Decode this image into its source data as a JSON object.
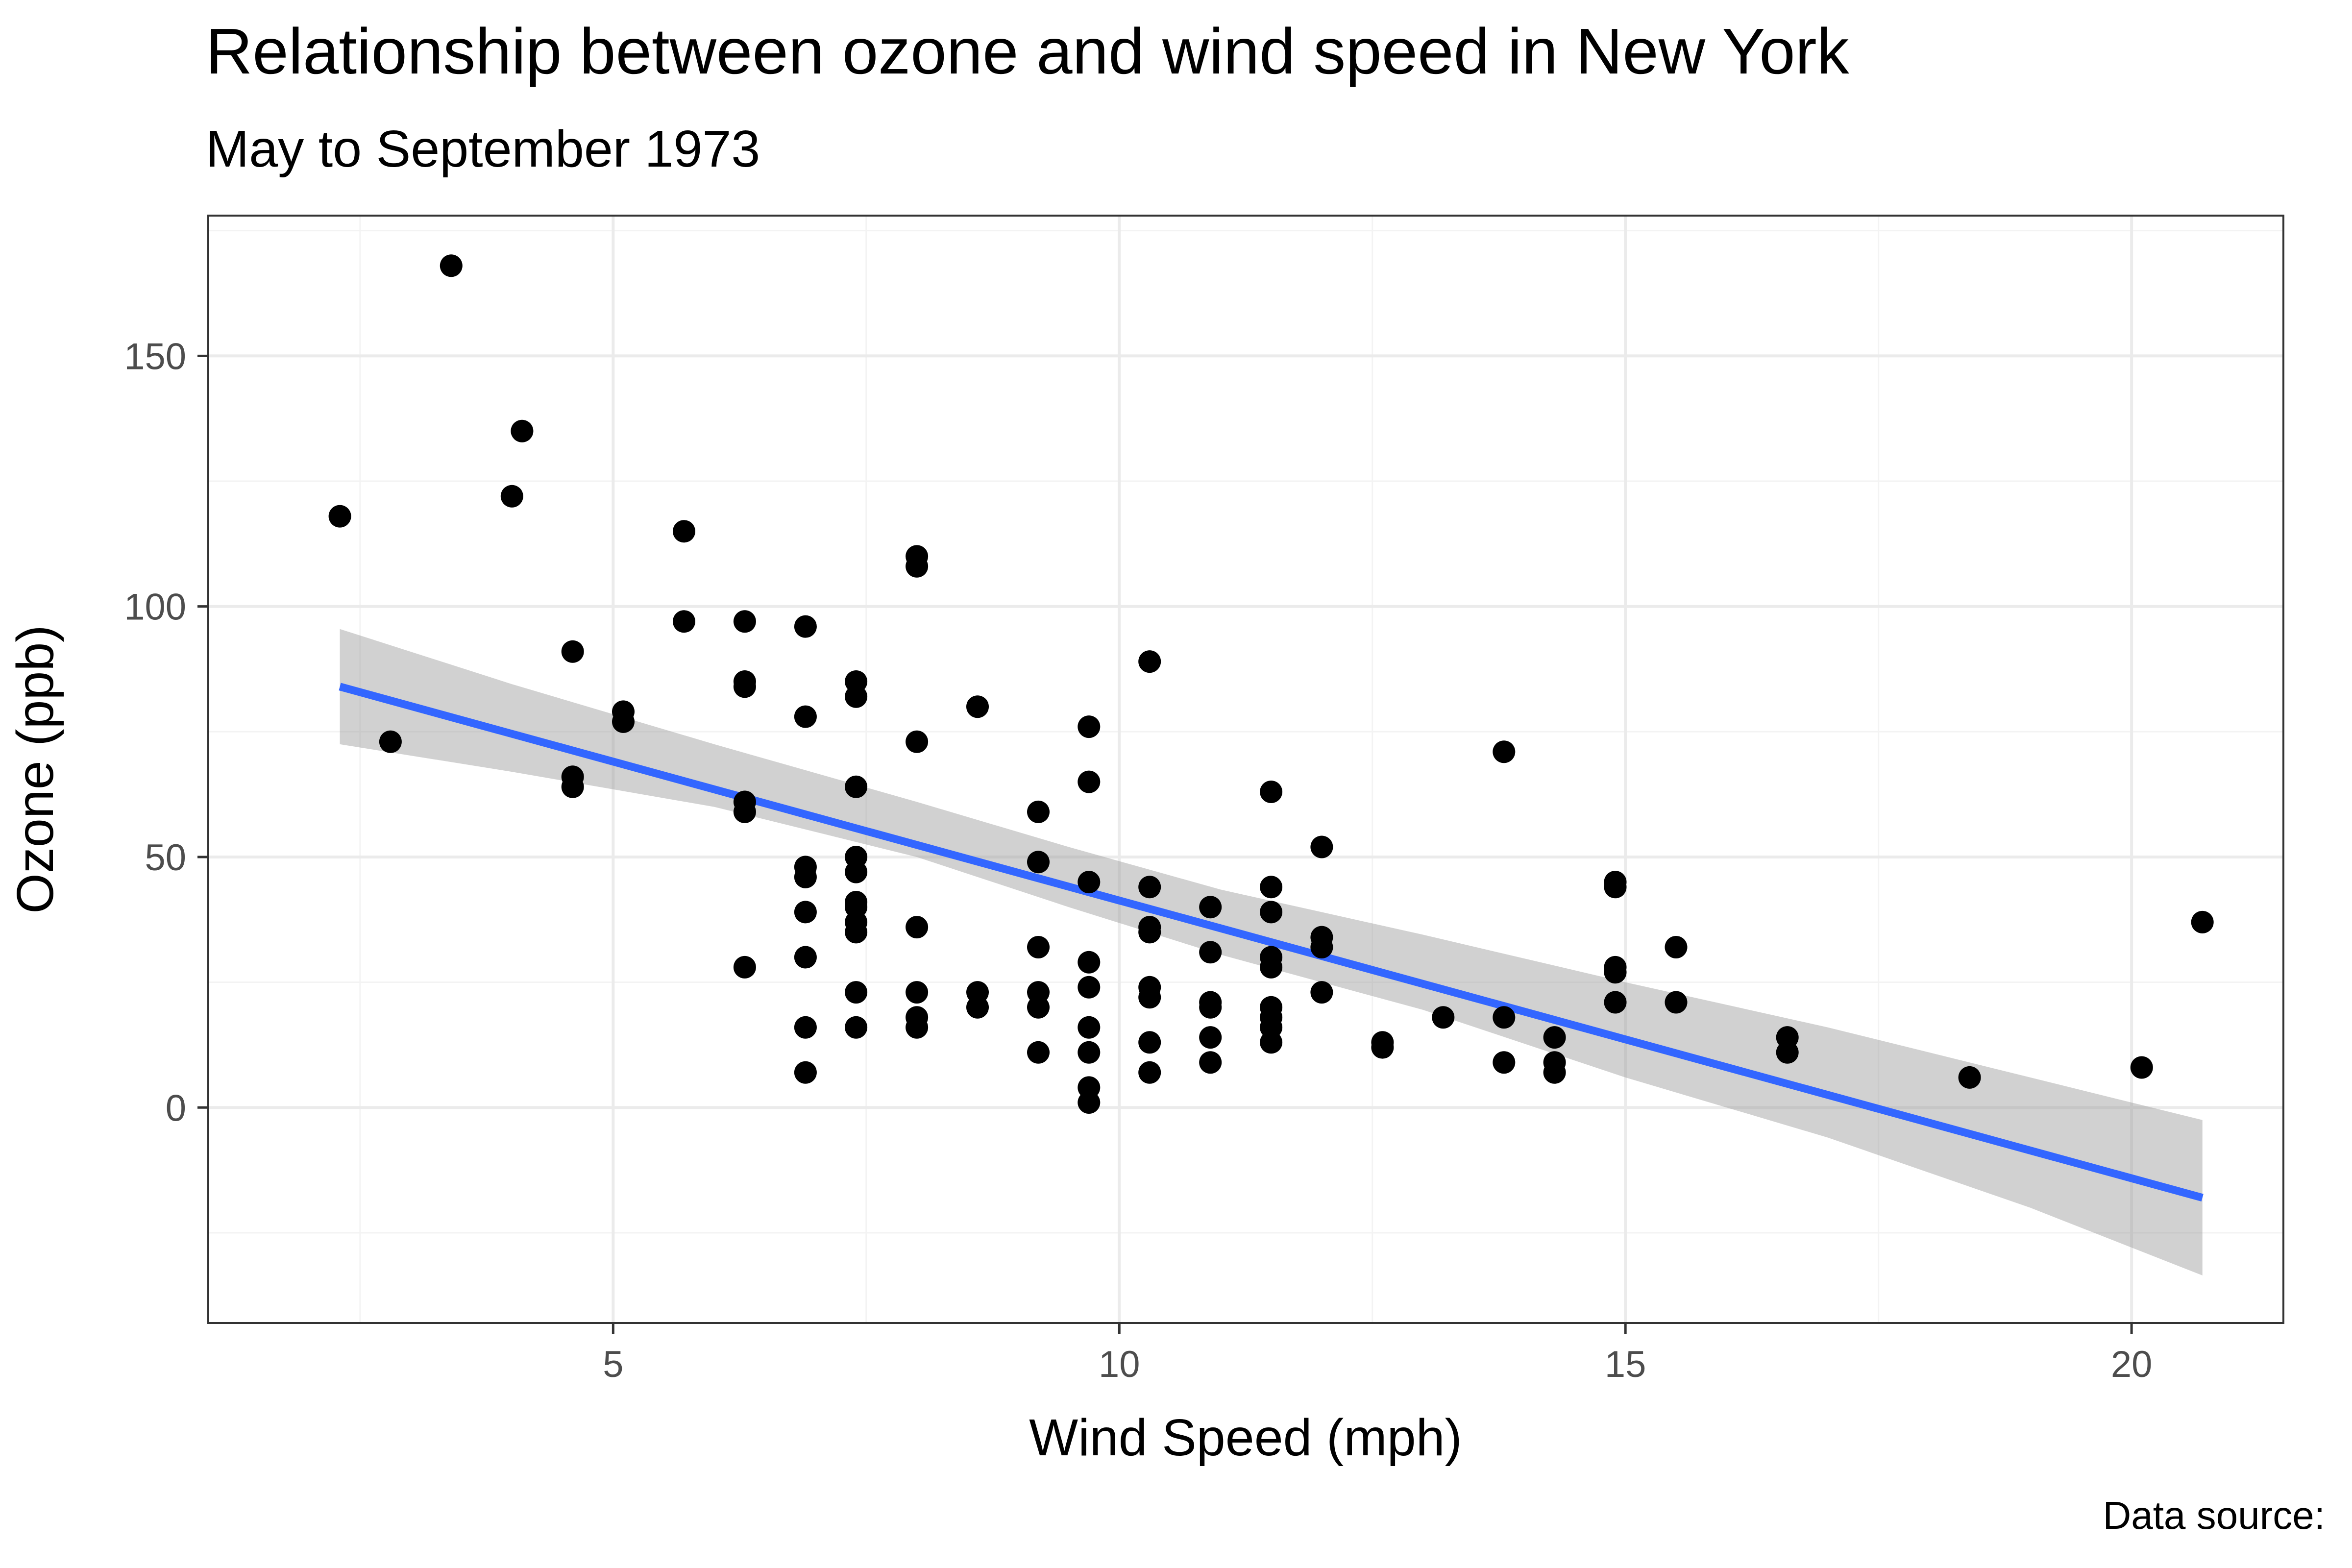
{
  "chart_data": {
    "type": "scatter",
    "title": "Relationship between ozone and wind speed in New York",
    "subtitle": "May to September 1973",
    "xlabel": "Wind Speed (mph)",
    "ylabel": "Ozone (ppb)",
    "caption": "Data source:",
    "xlim": [
      1.0,
      21.5
    ],
    "ylim": [
      -43,
      178
    ],
    "x_ticks": [
      5,
      10,
      15,
      20
    ],
    "y_ticks": [
      0,
      50,
      100,
      150
    ],
    "x_tick_labels": [
      "5",
      "10",
      "15",
      "20"
    ],
    "y_tick_labels": [
      "0",
      "50",
      "100",
      "150"
    ],
    "grid": true,
    "colors": {
      "points": "#000000",
      "line": "#3366FF",
      "band": "#999999",
      "grid_major": "#EBEBEB",
      "grid_minor": "#F3F3F3",
      "frame": "#333333"
    },
    "points": [
      {
        "x": 2.3,
        "y": 118
      },
      {
        "x": 2.8,
        "y": 73
      },
      {
        "x": 3.4,
        "y": 168
      },
      {
        "x": 4.0,
        "y": 122
      },
      {
        "x": 4.1,
        "y": 135
      },
      {
        "x": 4.6,
        "y": 91
      },
      {
        "x": 4.6,
        "y": 66
      },
      {
        "x": 4.6,
        "y": 64
      },
      {
        "x": 5.1,
        "y": 79
      },
      {
        "x": 5.1,
        "y": 77
      },
      {
        "x": 5.7,
        "y": 115
      },
      {
        "x": 5.7,
        "y": 97
      },
      {
        "x": 6.3,
        "y": 97
      },
      {
        "x": 6.3,
        "y": 85
      },
      {
        "x": 6.3,
        "y": 84
      },
      {
        "x": 6.3,
        "y": 61
      },
      {
        "x": 6.3,
        "y": 59
      },
      {
        "x": 6.3,
        "y": 28
      },
      {
        "x": 6.9,
        "y": 96
      },
      {
        "x": 6.9,
        "y": 78
      },
      {
        "x": 6.9,
        "y": 48
      },
      {
        "x": 6.9,
        "y": 46
      },
      {
        "x": 6.9,
        "y": 39
      },
      {
        "x": 6.9,
        "y": 30
      },
      {
        "x": 6.9,
        "y": 16
      },
      {
        "x": 6.9,
        "y": 7
      },
      {
        "x": 7.4,
        "y": 85
      },
      {
        "x": 7.4,
        "y": 82
      },
      {
        "x": 7.4,
        "y": 64
      },
      {
        "x": 7.4,
        "y": 50
      },
      {
        "x": 7.4,
        "y": 47
      },
      {
        "x": 7.4,
        "y": 41
      },
      {
        "x": 7.4,
        "y": 40
      },
      {
        "x": 7.4,
        "y": 37
      },
      {
        "x": 7.4,
        "y": 35
      },
      {
        "x": 7.4,
        "y": 23
      },
      {
        "x": 7.4,
        "y": 16
      },
      {
        "x": 8.0,
        "y": 110
      },
      {
        "x": 8.0,
        "y": 108
      },
      {
        "x": 8.0,
        "y": 73
      },
      {
        "x": 8.0,
        "y": 36
      },
      {
        "x": 8.0,
        "y": 23
      },
      {
        "x": 8.0,
        "y": 18
      },
      {
        "x": 8.0,
        "y": 16
      },
      {
        "x": 8.6,
        "y": 80
      },
      {
        "x": 8.6,
        "y": 23
      },
      {
        "x": 8.6,
        "y": 20
      },
      {
        "x": 9.2,
        "y": 59
      },
      {
        "x": 9.2,
        "y": 49
      },
      {
        "x": 9.2,
        "y": 32
      },
      {
        "x": 9.2,
        "y": 23
      },
      {
        "x": 9.2,
        "y": 20
      },
      {
        "x": 9.2,
        "y": 11
      },
      {
        "x": 9.7,
        "y": 76
      },
      {
        "x": 9.7,
        "y": 65
      },
      {
        "x": 9.7,
        "y": 45
      },
      {
        "x": 9.7,
        "y": 29
      },
      {
        "x": 9.7,
        "y": 24
      },
      {
        "x": 9.7,
        "y": 16
      },
      {
        "x": 9.7,
        "y": 11
      },
      {
        "x": 9.7,
        "y": 4
      },
      {
        "x": 9.7,
        "y": 1
      },
      {
        "x": 10.3,
        "y": 89
      },
      {
        "x": 10.3,
        "y": 44
      },
      {
        "x": 10.3,
        "y": 36
      },
      {
        "x": 10.3,
        "y": 35
      },
      {
        "x": 10.3,
        "y": 24
      },
      {
        "x": 10.3,
        "y": 22
      },
      {
        "x": 10.3,
        "y": 13
      },
      {
        "x": 10.3,
        "y": 7
      },
      {
        "x": 10.9,
        "y": 40
      },
      {
        "x": 10.9,
        "y": 31
      },
      {
        "x": 10.9,
        "y": 21
      },
      {
        "x": 10.9,
        "y": 20
      },
      {
        "x": 10.9,
        "y": 14
      },
      {
        "x": 10.9,
        "y": 9
      },
      {
        "x": 11.5,
        "y": 63
      },
      {
        "x": 11.5,
        "y": 44
      },
      {
        "x": 11.5,
        "y": 39
      },
      {
        "x": 11.5,
        "y": 30
      },
      {
        "x": 11.5,
        "y": 28
      },
      {
        "x": 11.5,
        "y": 20
      },
      {
        "x": 11.5,
        "y": 18
      },
      {
        "x": 11.5,
        "y": 16
      },
      {
        "x": 11.5,
        "y": 13
      },
      {
        "x": 12.0,
        "y": 52
      },
      {
        "x": 12.0,
        "y": 34
      },
      {
        "x": 12.0,
        "y": 32
      },
      {
        "x": 12.0,
        "y": 23
      },
      {
        "x": 12.6,
        "y": 13
      },
      {
        "x": 12.6,
        "y": 12
      },
      {
        "x": 13.2,
        "y": 18
      },
      {
        "x": 13.8,
        "y": 71
      },
      {
        "x": 13.8,
        "y": 18
      },
      {
        "x": 13.8,
        "y": 9
      },
      {
        "x": 14.3,
        "y": 14
      },
      {
        "x": 14.3,
        "y": 9
      },
      {
        "x": 14.3,
        "y": 7
      },
      {
        "x": 14.9,
        "y": 45
      },
      {
        "x": 14.9,
        "y": 44
      },
      {
        "x": 14.9,
        "y": 28
      },
      {
        "x": 14.9,
        "y": 27
      },
      {
        "x": 14.9,
        "y": 21
      },
      {
        "x": 15.5,
        "y": 32
      },
      {
        "x": 15.5,
        "y": 21
      },
      {
        "x": 16.6,
        "y": 14
      },
      {
        "x": 16.6,
        "y": 11
      },
      {
        "x": 18.4,
        "y": 6
      },
      {
        "x": 20.1,
        "y": 8
      },
      {
        "x": 20.7,
        "y": 37
      }
    ],
    "fit_line": {
      "x": [
        2.3,
        20.7
      ],
      "y": [
        84,
        -18
      ]
    },
    "confidence_band": {
      "x": [
        2.3,
        4.0,
        6.0,
        8.0,
        9.5,
        11.0,
        13.0,
        15.0,
        17.0,
        19.0,
        20.7
      ],
      "upper": [
        95.5,
        84.5,
        72.5,
        61.0,
        52.0,
        43.5,
        34.5,
        25.0,
        16.0,
        6.0,
        -2.5
      ],
      "lower": [
        72.5,
        67.0,
        60.0,
        50.0,
        40.0,
        30.5,
        19.5,
        6.0,
        -6.0,
        -20.0,
        -33.5
      ]
    }
  }
}
